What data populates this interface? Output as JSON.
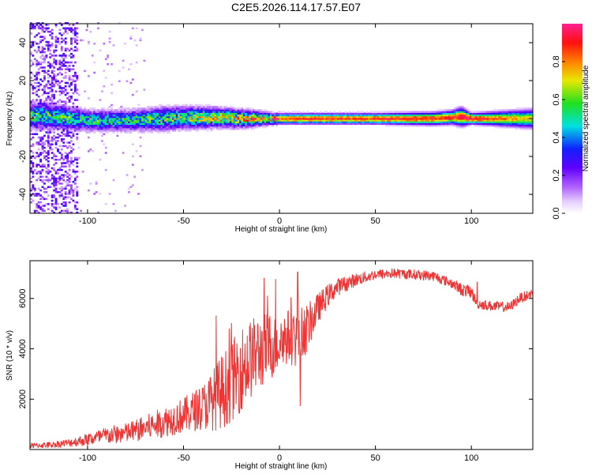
{
  "title": "C2E5.2026.114.17.57.E07",
  "chart_data": [
    {
      "type": "heatmap",
      "name": "spectrogram",
      "title": "C2E5.2026.114.17.57.E07",
      "xlabel": "Height of straight line (km)",
      "ylabel": "Frequency (Hz)",
      "xlim": [
        -130,
        132
      ],
      "ylim": [
        -50,
        50
      ],
      "xticks": [
        -100,
        -50,
        0,
        50,
        100
      ],
      "xtick_labels": [
        "-100",
        "-50",
        "0",
        "50",
        "100"
      ],
      "yticks": [
        -40,
        -20,
        0,
        20,
        40
      ],
      "ytick_labels": [
        "-40",
        "-20",
        "0",
        "20",
        "40"
      ],
      "colorbar": {
        "label": "Normalized spectral amplitude",
        "range": [
          0,
          1
        ],
        "ticks": [
          0,
          0.2,
          0.4,
          0.6,
          0.8
        ],
        "tick_labels": [
          "0.0",
          "0.2",
          "0.4",
          "0.6",
          "0.8"
        ],
        "colormap": "rainbow: white-violet-purple-blue-cyan-green-yellow-orange-red-magenta"
      },
      "ridge_center_hz": [
        [
          -120,
          1.5
        ],
        [
          -100,
          -1
        ],
        [
          -80,
          -1
        ],
        [
          -60,
          0
        ],
        [
          -50,
          0.5
        ],
        [
          -40,
          0.5
        ],
        [
          -30,
          0.5
        ],
        [
          -20,
          0
        ],
        [
          -10,
          0
        ],
        [
          0,
          0
        ],
        [
          20,
          0
        ],
        [
          50,
          0
        ],
        [
          80,
          0
        ],
        [
          95,
          1
        ],
        [
          100,
          0
        ],
        [
          132,
          0
        ]
      ],
      "ridge_peak_amplitude": [
        [
          -120,
          0.6
        ],
        [
          -100,
          0.55
        ],
        [
          -80,
          0.55
        ],
        [
          -60,
          0.6
        ],
        [
          -40,
          0.7
        ],
        [
          -25,
          0.75
        ],
        [
          -10,
          0.8
        ],
        [
          0,
          0.85
        ],
        [
          10,
          0.9
        ],
        [
          30,
          0.88
        ],
        [
          60,
          0.9
        ],
        [
          95,
          0.92
        ],
        [
          100,
          0.95
        ],
        [
          132,
          0.7
        ]
      ],
      "ridge_halfwidth_hz": [
        [
          -120,
          5
        ],
        [
          -100,
          4
        ],
        [
          -80,
          4
        ],
        [
          -60,
          4.5
        ],
        [
          -40,
          4
        ],
        [
          -20,
          3.5
        ],
        [
          0,
          2
        ],
        [
          20,
          2
        ],
        [
          50,
          2
        ],
        [
          90,
          2.5
        ],
        [
          95,
          3.5
        ],
        [
          100,
          2
        ],
        [
          132,
          3.5
        ]
      ],
      "noise_scatter_region_km": [
        -130,
        -105
      ]
    },
    {
      "type": "line",
      "name": "snr",
      "xlabel": "Height of straight line (km)",
      "ylabel": "SNR (10 * v/v)",
      "xlim": [
        -130,
        132
      ],
      "ylim": [
        0,
        7500
      ],
      "xticks": [
        -100,
        -50,
        0,
        50,
        100
      ],
      "xtick_labels": [
        "-100",
        "-50",
        "0",
        "50",
        "100"
      ],
      "yticks": [
        2000,
        4000,
        6000
      ],
      "ytick_labels": [
        "2000",
        "4000",
        "6000"
      ],
      "color": "#f03434",
      "x": [
        -130,
        -120,
        -110,
        -100,
        -90,
        -80,
        -70,
        -60,
        -50,
        -40,
        -35,
        -30,
        -25,
        -20,
        -15,
        -10,
        -5,
        0,
        5,
        10,
        15,
        20,
        25,
        30,
        40,
        50,
        60,
        70,
        80,
        90,
        95,
        100,
        103,
        110,
        120,
        125,
        132
      ],
      "y": [
        150,
        180,
        260,
        400,
        550,
        650,
        850,
        1100,
        1350,
        1700,
        1950,
        2300,
        2700,
        3200,
        3600,
        3900,
        4100,
        4300,
        4500,
        4400,
        4900,
        5600,
        6100,
        6450,
        6750,
        6950,
        7000,
        6950,
        6900,
        6600,
        6350,
        6250,
        5800,
        5700,
        5650,
        6000,
        6200
      ],
      "noise_amp": [
        100,
        120,
        160,
        250,
        350,
        400,
        500,
        600,
        700,
        900,
        1200,
        1500,
        1600,
        1700,
        1600,
        1500,
        1400,
        1200,
        1100,
        1200,
        900,
        600,
        450,
        350,
        250,
        200,
        200,
        200,
        200,
        200,
        250,
        250,
        200,
        200,
        200,
        200,
        200
      ],
      "features": [
        {
          "x": -33,
          "y": 5300
        },
        {
          "x": -25,
          "y": 5000
        },
        {
          "x": -8,
          "y": 6800
        },
        {
          "x": -2,
          "y": 6750
        },
        {
          "x": 9.5,
          "y": 7050
        },
        {
          "x": 10.8,
          "y": 1750
        },
        {
          "x": 103,
          "y": 6650
        }
      ]
    }
  ]
}
